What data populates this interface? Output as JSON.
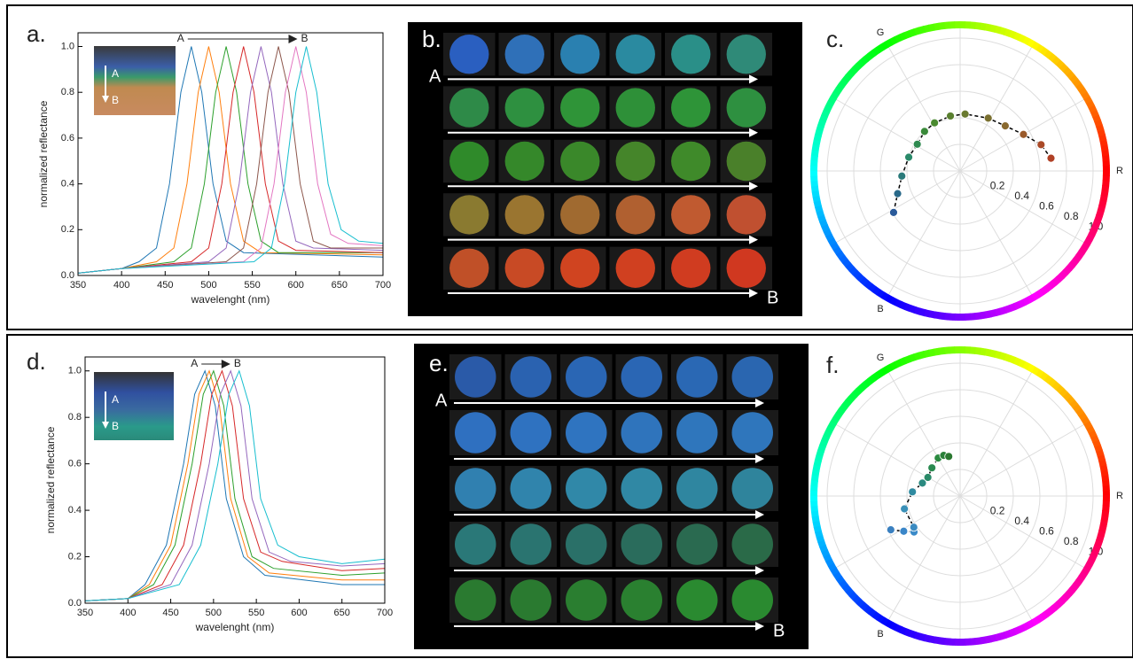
{
  "chart_data": [
    {
      "type": "line",
      "panel_label": "a.",
      "xlabel": "wavelenght (nm)",
      "ylabel": "normalized reflectance",
      "xlim": [
        350,
        700
      ],
      "xticks": [
        350,
        400,
        450,
        500,
        550,
        600,
        650,
        700
      ],
      "ylim": [
        0,
        1.06
      ],
      "yticks": [
        {
          "value": 0,
          "label": "0.0"
        },
        0.2,
        0.4,
        0.6,
        0.8,
        {
          "value": 1,
          "label": "1.0"
        }
      ],
      "arrow_labels": [
        "A",
        "B"
      ],
      "inset_labels": [
        "A",
        "B"
      ],
      "series": [
        {
          "color": "#1f77b4",
          "x": [
            350,
            400,
            420,
            440,
            455,
            468,
            480,
            492,
            505,
            520,
            540,
            700
          ],
          "values": [
            0.01,
            0.03,
            0.06,
            0.12,
            0.4,
            0.8,
            1.0,
            0.8,
            0.4,
            0.15,
            0.1,
            0.08
          ]
        },
        {
          "color": "#ff7f0e",
          "x": [
            350,
            400,
            440,
            460,
            475,
            488,
            500,
            512,
            525,
            540,
            560,
            700
          ],
          "values": [
            0.01,
            0.03,
            0.06,
            0.12,
            0.4,
            0.8,
            1.0,
            0.8,
            0.4,
            0.15,
            0.1,
            0.09
          ]
        },
        {
          "color": "#2ca02c",
          "x": [
            350,
            400,
            460,
            480,
            495,
            508,
            520,
            532,
            545,
            560,
            580,
            700
          ],
          "values": [
            0.01,
            0.03,
            0.06,
            0.12,
            0.4,
            0.8,
            1.0,
            0.8,
            0.4,
            0.15,
            0.1,
            0.1
          ]
        },
        {
          "color": "#d62728",
          "x": [
            350,
            400,
            480,
            500,
            515,
            528,
            540,
            552,
            565,
            580,
            600,
            700
          ],
          "values": [
            0.01,
            0.03,
            0.06,
            0.12,
            0.4,
            0.8,
            1.0,
            0.8,
            0.4,
            0.15,
            0.11,
            0.1
          ]
        },
        {
          "color": "#9467bd",
          "x": [
            350,
            400,
            500,
            520,
            535,
            548,
            560,
            572,
            585,
            600,
            620,
            700
          ],
          "values": [
            0.01,
            0.03,
            0.06,
            0.12,
            0.4,
            0.8,
            1.0,
            0.8,
            0.4,
            0.15,
            0.12,
            0.11
          ]
        },
        {
          "color": "#8c564b",
          "x": [
            350,
            400,
            520,
            540,
            555,
            568,
            580,
            592,
            605,
            620,
            640,
            700
          ],
          "values": [
            0.01,
            0.03,
            0.06,
            0.12,
            0.4,
            0.8,
            1.0,
            0.8,
            0.4,
            0.15,
            0.12,
            0.12
          ]
        },
        {
          "color": "#e377c2",
          "x": [
            350,
            400,
            540,
            560,
            575,
            588,
            600,
            612,
            625,
            640,
            660,
            700
          ],
          "values": [
            0.01,
            0.03,
            0.06,
            0.12,
            0.4,
            0.8,
            1.0,
            0.8,
            0.4,
            0.18,
            0.14,
            0.13
          ]
        },
        {
          "color": "#17becf",
          "x": [
            350,
            400,
            552,
            572,
            587,
            600,
            612,
            624,
            637,
            652,
            672,
            700
          ],
          "values": [
            0.01,
            0.03,
            0.06,
            0.12,
            0.4,
            0.8,
            1.0,
            0.8,
            0.4,
            0.2,
            0.15,
            0.14
          ]
        }
      ]
    },
    {
      "type": "image_grid",
      "panel_label": "b.",
      "start_label": "A",
      "end_label": "B",
      "tiles": [
        [
          "#2a5fc0",
          "#2f70b8",
          "#2a80b0",
          "#2a8aa0",
          "#2a8f88",
          "#2f8a78"
        ],
        [
          "#2e8a48",
          "#2e9040",
          "#2f9438",
          "#2e9038",
          "#2e9438",
          "#2e9040"
        ],
        [
          "#2f8a2a",
          "#35882a",
          "#3a882a",
          "#45852a",
          "#3f8a2a",
          "#4a802a"
        ],
        [
          "#8a7a30",
          "#9a7530",
          "#a06a30",
          "#b06030",
          "#c05a30",
          "#c05030"
        ],
        [
          "#c05028",
          "#c84a25",
          "#d04420",
          "#d04020",
          "#d03c20",
          "#d03820"
        ]
      ]
    },
    {
      "type": "polar",
      "panel_label": "c.",
      "axis_labels": [
        "R",
        "G",
        "B"
      ],
      "rlim": [
        0,
        1.1
      ],
      "rticks": [
        0.2,
        0.4,
        0.6,
        0.8,
        {
          "value": 1,
          "label": "1.0"
        }
      ],
      "theta": [
        212,
        200,
        185,
        165,
        148,
        132,
        118,
        100,
        85,
        62,
        45,
        30,
        18,
        8
      ],
      "r": [
        0.59,
        0.5,
        0.44,
        0.4,
        0.38,
        0.4,
        0.41,
        0.42,
        0.43,
        0.45,
        0.48,
        0.55,
        0.64,
        0.69
      ],
      "colors": [
        "#2a5a9a",
        "#2a6a8a",
        "#2a7a7a",
        "#2a8a6a",
        "#2f8a50",
        "#3a8a3a",
        "#4a8a30",
        "#5a8030",
        "#6a7a30",
        "#7a7030",
        "#8a6a30",
        "#9a5a2a",
        "#aa4a28",
        "#b04025"
      ]
    },
    {
      "type": "line",
      "panel_label": "d.",
      "xlabel": "wavelenght (nm)",
      "ylabel": "normalized reflectance",
      "xlim": [
        350,
        700
      ],
      "xticks": [
        350,
        400,
        450,
        500,
        550,
        600,
        650,
        700
      ],
      "ylim": [
        0,
        1.06
      ],
      "yticks": [
        {
          "value": 0,
          "label": "0.0"
        },
        0.2,
        0.4,
        0.6,
        0.8,
        {
          "value": 1,
          "label": "1.0"
        }
      ],
      "arrow_labels": [
        "A",
        "B"
      ],
      "inset_labels": [
        "A",
        "B"
      ],
      "series": [
        {
          "color": "#1f77b4",
          "x": [
            350,
            400,
            420,
            445,
            465,
            478,
            490,
            502,
            515,
            535,
            560,
            650,
            700
          ],
          "values": [
            0.01,
            0.02,
            0.08,
            0.25,
            0.6,
            0.9,
            1.0,
            0.85,
            0.45,
            0.2,
            0.12,
            0.08,
            0.08
          ]
        },
        {
          "color": "#ff7f0e",
          "x": [
            350,
            400,
            425,
            450,
            470,
            483,
            495,
            507,
            520,
            540,
            565,
            650,
            700
          ],
          "values": [
            0.01,
            0.02,
            0.08,
            0.25,
            0.6,
            0.9,
            1.0,
            0.85,
            0.45,
            0.2,
            0.13,
            0.1,
            0.1
          ]
        },
        {
          "color": "#2ca02c",
          "x": [
            350,
            400,
            430,
            455,
            475,
            488,
            500,
            512,
            525,
            545,
            570,
            650,
            700
          ],
          "values": [
            0.01,
            0.02,
            0.08,
            0.25,
            0.6,
            0.9,
            1.0,
            0.85,
            0.45,
            0.2,
            0.15,
            0.12,
            0.13
          ]
        },
        {
          "color": "#d62728",
          "x": [
            350,
            400,
            440,
            465,
            485,
            498,
            510,
            522,
            535,
            555,
            580,
            650,
            700
          ],
          "values": [
            0.01,
            0.02,
            0.08,
            0.25,
            0.6,
            0.9,
            1.0,
            0.85,
            0.45,
            0.22,
            0.18,
            0.14,
            0.15
          ]
        },
        {
          "color": "#9467bd",
          "x": [
            350,
            400,
            450,
            475,
            495,
            508,
            520,
            532,
            545,
            565,
            590,
            650,
            700
          ],
          "values": [
            0.01,
            0.02,
            0.08,
            0.25,
            0.6,
            0.9,
            1.0,
            0.85,
            0.45,
            0.22,
            0.18,
            0.16,
            0.17
          ]
        },
        {
          "color": "#17becf",
          "x": [
            350,
            400,
            460,
            485,
            505,
            518,
            530,
            542,
            555,
            575,
            600,
            650,
            700
          ],
          "values": [
            0.01,
            0.02,
            0.08,
            0.25,
            0.6,
            0.9,
            1.0,
            0.85,
            0.45,
            0.25,
            0.2,
            0.17,
            0.19
          ]
        }
      ]
    },
    {
      "type": "image_grid",
      "panel_label": "e.",
      "start_label": "A",
      "end_label": "B",
      "tiles": [
        [
          "#2a5aa8",
          "#2a62b0",
          "#2a66b4",
          "#2a66b4",
          "#2a68b4",
          "#2a66b0"
        ],
        [
          "#2f70c0",
          "#2f72c0",
          "#2f74c0",
          "#2f74bc",
          "#2f76bc",
          "#2f76bc"
        ],
        [
          "#3080b0",
          "#3084ac",
          "#3088a8",
          "#3088a4",
          "#2f86a0",
          "#2f849c"
        ],
        [
          "#2a7878",
          "#2a7470",
          "#2a7068",
          "#2a6c5c",
          "#2a6a50",
          "#2a6a48"
        ],
        [
          "#2a7a30",
          "#2a7a30",
          "#2a7e30",
          "#2a8030",
          "#2a8a30",
          "#2a8a30"
        ]
      ]
    },
    {
      "type": "polar",
      "panel_label": "f.",
      "axis_labels": [
        "R",
        "G",
        "B"
      ],
      "rlim": [
        0,
        1.1
      ],
      "rticks": [
        0.2,
        0.4,
        0.6,
        0.8,
        {
          "value": 1,
          "label": "1.0"
        }
      ],
      "theta": [
        206,
        212,
        218,
        214,
        193,
        175,
        161,
        150,
        135,
        120,
        112,
        106
      ],
      "r": [
        0.58,
        0.5,
        0.44,
        0.42,
        0.43,
        0.36,
        0.3,
        0.28,
        0.3,
        0.33,
        0.33,
        0.31
      ],
      "colors": [
        "#3a80c0",
        "#3a86c8",
        "#3a8ac8",
        "#3a8ac0",
        "#3a90b8",
        "#2f8aa0",
        "#2a8a80",
        "#2a8a68",
        "#2a8a50",
        "#2a8a40",
        "#2a8038",
        "#2a7830"
      ]
    }
  ]
}
